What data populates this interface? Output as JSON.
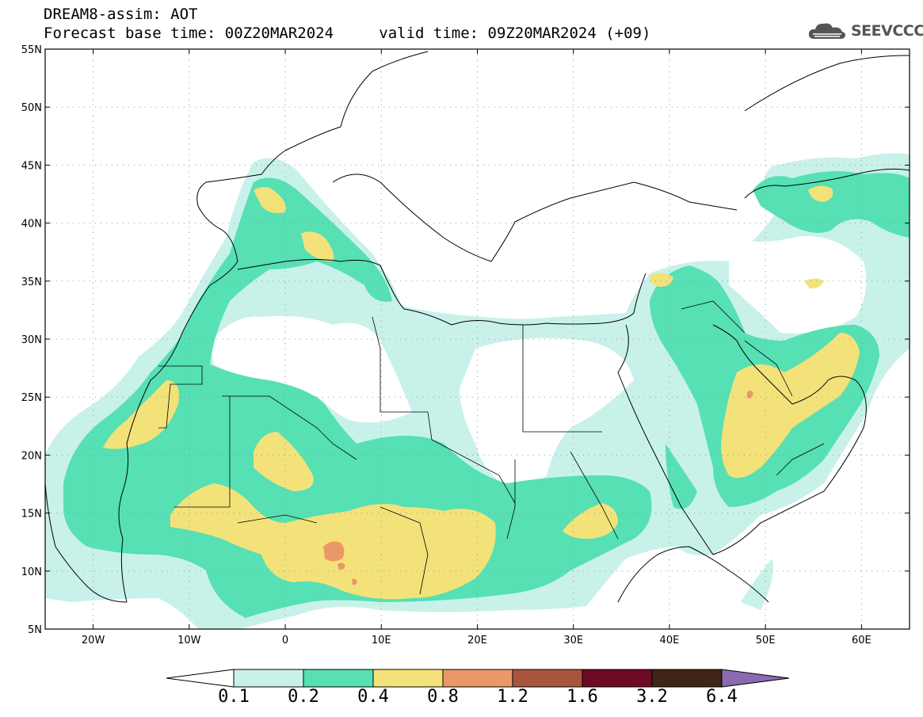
{
  "header": {
    "title": "DREAM8-assim: AOT",
    "base_time_label": "Forecast base time: 00Z20MAR2024",
    "valid_time_label": "valid time: 09Z20MAR2024 (+09)"
  },
  "logo": {
    "text": "SEEVCCC",
    "icon": "cloud-icon"
  },
  "map": {
    "lon_range": [
      -25,
      65
    ],
    "lat_range": [
      5,
      55
    ],
    "lat_ticks": [
      "55N",
      "50N",
      "45N",
      "40N",
      "35N",
      "30N",
      "25N",
      "20N",
      "15N",
      "10N",
      "5N"
    ],
    "lon_ticks": [
      "20W",
      "10W",
      "0",
      "10E",
      "20E",
      "30E",
      "40E",
      "50E",
      "60E"
    ],
    "grid": "dotted"
  },
  "colorbar": {
    "labels": [
      "0.1",
      "0.2",
      "0.4",
      "0.8",
      "1.2",
      "1.6",
      "3.2",
      "6.4"
    ],
    "colors": [
      "#ffffff",
      "#c8f1ea",
      "#56e0b4",
      "#f3e27a",
      "#ea9868",
      "#a9553d",
      "#6f0a24",
      "#3e2515",
      "#8b6ab2"
    ]
  }
}
